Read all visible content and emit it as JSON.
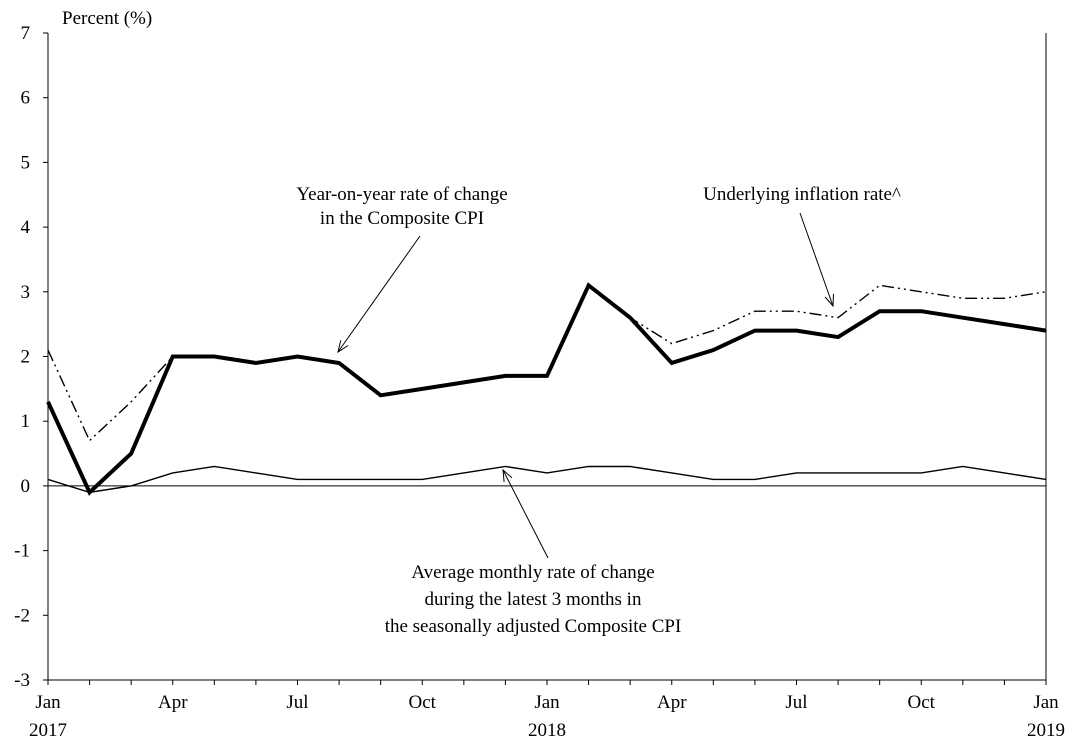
{
  "chart_data": {
    "type": "line",
    "ylabel": "Percent (%)",
    "ylim": [
      -3,
      7
    ],
    "yticks": [
      -3,
      -2,
      -1,
      0,
      1,
      2,
      3,
      4,
      5,
      6,
      7
    ],
    "x": [
      "2017-01",
      "2017-02",
      "2017-03",
      "2017-04",
      "2017-05",
      "2017-06",
      "2017-07",
      "2017-08",
      "2017-09",
      "2017-10",
      "2017-11",
      "2017-12",
      "2018-01",
      "2018-02",
      "2018-03",
      "2018-04",
      "2018-05",
      "2018-06",
      "2018-07",
      "2018-08",
      "2018-09",
      "2018-10",
      "2018-11",
      "2018-12",
      "2019-01"
    ],
    "xticks": [
      {
        "label": "Jan",
        "sub": "2017"
      },
      {
        "label": "Apr",
        "sub": ""
      },
      {
        "label": "Jul",
        "sub": ""
      },
      {
        "label": "Oct",
        "sub": ""
      },
      {
        "label": "Jan",
        "sub": "2018"
      },
      {
        "label": "Apr",
        "sub": ""
      },
      {
        "label": "Jul",
        "sub": ""
      },
      {
        "label": "Oct",
        "sub": ""
      },
      {
        "label": "Jan",
        "sub": "2019"
      }
    ],
    "series": [
      {
        "name": "Year-on-year rate of change in the Composite CPI",
        "style": "solid-thick",
        "values": [
          1.3,
          -0.1,
          0.5,
          2.0,
          2.0,
          1.9,
          2.0,
          1.9,
          1.4,
          1.5,
          1.6,
          1.7,
          1.7,
          3.1,
          2.6,
          1.9,
          2.1,
          2.4,
          2.4,
          2.3,
          2.7,
          2.7,
          2.6,
          2.5,
          2.4
        ]
      },
      {
        "name": "Underlying inflation rate^",
        "style": "dash-dot-dot",
        "values": [
          2.1,
          0.7,
          1.3,
          2.0,
          2.0,
          1.9,
          2.0,
          1.9,
          1.4,
          1.5,
          1.6,
          1.7,
          1.7,
          3.1,
          2.6,
          2.2,
          2.4,
          2.7,
          2.7,
          2.6,
          3.1,
          3.0,
          2.9,
          2.9,
          3.0
        ]
      },
      {
        "name": "Average monthly rate of change during the latest 3 months in the seasonally adjusted Composite CPI",
        "style": "solid-thin",
        "values": [
          0.1,
          -0.1,
          0.0,
          0.2,
          0.3,
          0.2,
          0.1,
          0.1,
          0.1,
          0.1,
          0.2,
          0.3,
          0.2,
          0.3,
          0.3,
          0.2,
          0.1,
          0.1,
          0.2,
          0.2,
          0.2,
          0.2,
          0.3,
          0.2,
          0.1
        ]
      }
    ],
    "annotations": [
      {
        "lines": [
          "Year-on-year rate of change",
          "in the Composite CPI"
        ],
        "series": 0
      },
      {
        "lines": [
          "Underlying inflation rate^"
        ],
        "series": 1
      },
      {
        "lines": [
          "Average monthly rate of change",
          "during the latest 3 months in",
          "the seasonally adjusted Composite CPI"
        ],
        "series": 2
      }
    ]
  }
}
